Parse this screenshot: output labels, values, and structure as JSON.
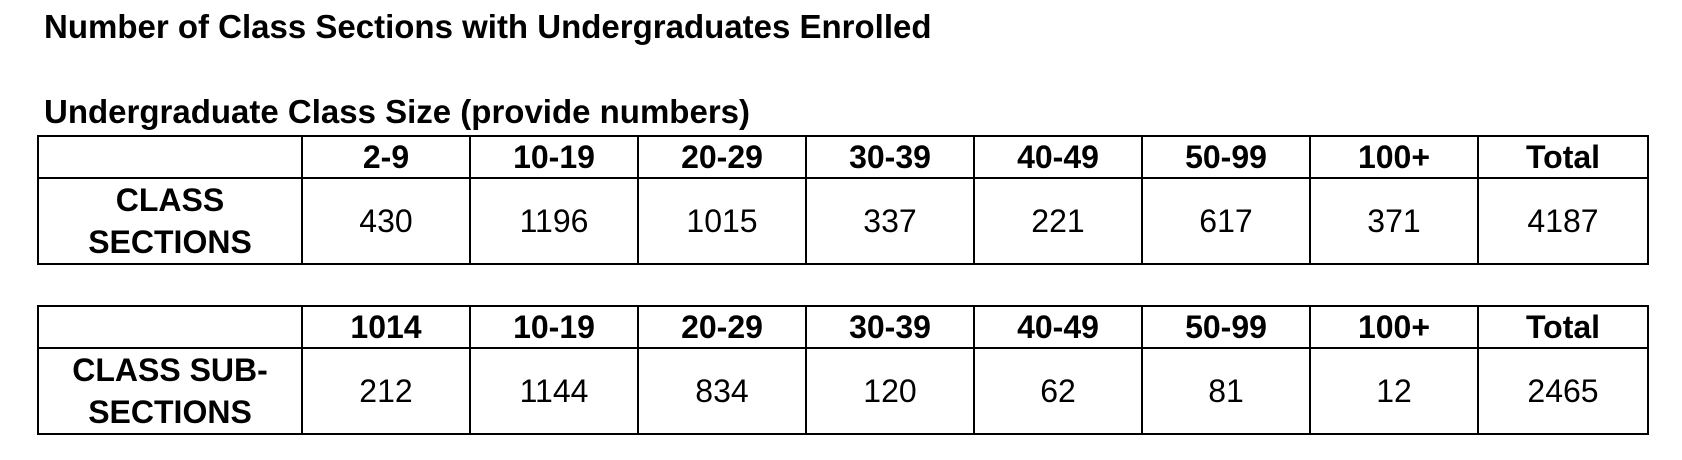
{
  "page_title": "Number of Class Sections with Undergraduates Enrolled",
  "section_title": "Undergraduate Class Size (provide numbers)",
  "tables": [
    {
      "headers": [
        "2-9",
        "10-19",
        "20-29",
        "30-39",
        "40-49",
        "50-99",
        "100+",
        "Total"
      ],
      "row_label_line1": "CLASS",
      "row_label_line2": "SECTIONS",
      "values": [
        "430",
        "1196",
        "1015",
        "337",
        "221",
        "617",
        "371",
        "4187"
      ]
    },
    {
      "headers": [
        "1014",
        "10-19",
        "20-29",
        "30-39",
        "40-49",
        "50-99",
        "100+",
        "Total"
      ],
      "row_label_line1": "CLASS SUB-",
      "row_label_line2": "SECTIONS",
      "values": [
        "212",
        "1144",
        "834",
        "120",
        "62",
        "81",
        "12",
        "2465"
      ]
    }
  ]
}
